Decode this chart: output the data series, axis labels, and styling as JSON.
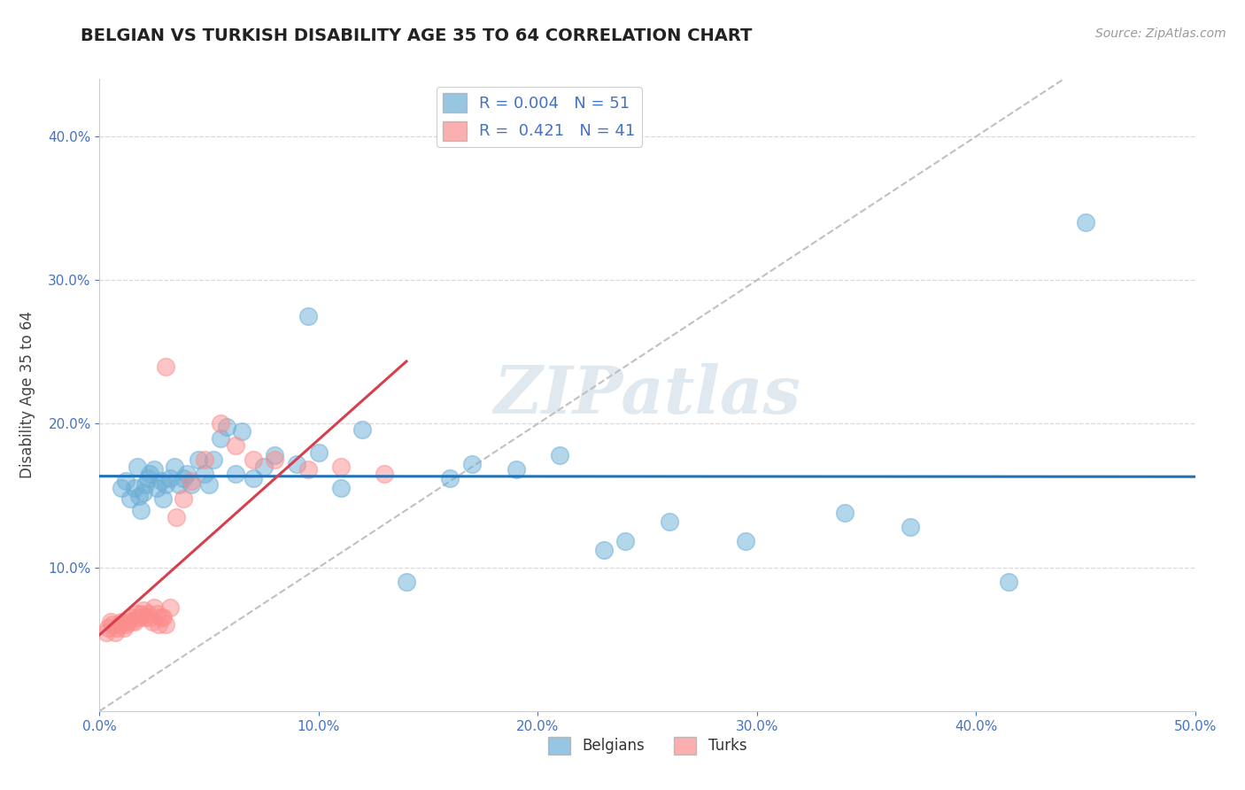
{
  "title": "BELGIAN VS TURKISH DISABILITY AGE 35 TO 64 CORRELATION CHART",
  "source_text": "Source: ZipAtlas.com",
  "ylabel": "Disability Age 35 to 64",
  "xlim": [
    0.0,
    0.5
  ],
  "ylim": [
    0.0,
    0.44
  ],
  "xticks": [
    0.0,
    0.1,
    0.2,
    0.3,
    0.4,
    0.5
  ],
  "yticks": [
    0.1,
    0.2,
    0.3,
    0.4
  ],
  "xticklabels": [
    "0.0%",
    "10.0%",
    "20.0%",
    "30.0%",
    "40.0%",
    "50.0%"
  ],
  "yticklabels": [
    "10.0%",
    "20.0%",
    "30.0%",
    "40.0%"
  ],
  "belgian_R": 0.004,
  "belgian_N": 51,
  "turkish_R": 0.421,
  "turkish_N": 41,
  "belgian_color": "#6baed6",
  "turkish_color": "#fc8d8d",
  "belgian_trend_color": "#2171b5",
  "turkish_trend_color": "#d6404e",
  "background_color": "#ffffff",
  "belgian_x": [
    0.01,
    0.012,
    0.014,
    0.016,
    0.017,
    0.018,
    0.019,
    0.02,
    0.021,
    0.022,
    0.023,
    0.025,
    0.026,
    0.028,
    0.029,
    0.03,
    0.032,
    0.034,
    0.036,
    0.038,
    0.04,
    0.042,
    0.045,
    0.048,
    0.05,
    0.052,
    0.055,
    0.058,
    0.062,
    0.065,
    0.07,
    0.075,
    0.08,
    0.09,
    0.095,
    0.1,
    0.11,
    0.12,
    0.14,
    0.16,
    0.17,
    0.19,
    0.21,
    0.23,
    0.24,
    0.26,
    0.295,
    0.34,
    0.37,
    0.415,
    0.45
  ],
  "belgian_y": [
    0.155,
    0.16,
    0.148,
    0.155,
    0.17,
    0.15,
    0.14,
    0.152,
    0.158,
    0.162,
    0.165,
    0.168,
    0.155,
    0.16,
    0.148,
    0.158,
    0.162,
    0.17,
    0.158,
    0.162,
    0.165,
    0.158,
    0.175,
    0.165,
    0.158,
    0.175,
    0.19,
    0.198,
    0.165,
    0.195,
    0.162,
    0.17,
    0.178,
    0.172,
    0.275,
    0.18,
    0.155,
    0.196,
    0.09,
    0.162,
    0.172,
    0.168,
    0.178,
    0.112,
    0.118,
    0.132,
    0.118,
    0.138,
    0.128,
    0.09,
    0.34
  ],
  "turkish_x": [
    0.003,
    0.004,
    0.005,
    0.006,
    0.007,
    0.008,
    0.009,
    0.01,
    0.011,
    0.012,
    0.013,
    0.014,
    0.015,
    0.016,
    0.017,
    0.018,
    0.019,
    0.02,
    0.021,
    0.022,
    0.023,
    0.024,
    0.025,
    0.026,
    0.027,
    0.028,
    0.029,
    0.03,
    0.032,
    0.035,
    0.038,
    0.042,
    0.048,
    0.055,
    0.062,
    0.07,
    0.08,
    0.095,
    0.11,
    0.13,
    0.03
  ],
  "turkish_y": [
    0.055,
    0.058,
    0.062,
    0.06,
    0.055,
    0.058,
    0.06,
    0.062,
    0.058,
    0.06,
    0.062,
    0.065,
    0.063,
    0.062,
    0.068,
    0.065,
    0.068,
    0.07,
    0.065,
    0.068,
    0.065,
    0.062,
    0.072,
    0.068,
    0.06,
    0.065,
    0.065,
    0.06,
    0.072,
    0.135,
    0.148,
    0.16,
    0.175,
    0.2,
    0.185,
    0.175,
    0.175,
    0.168,
    0.17,
    0.165,
    0.24
  ],
  "diag_line_color": "#c0c0c0",
  "grid_color": "#d8d8d8"
}
